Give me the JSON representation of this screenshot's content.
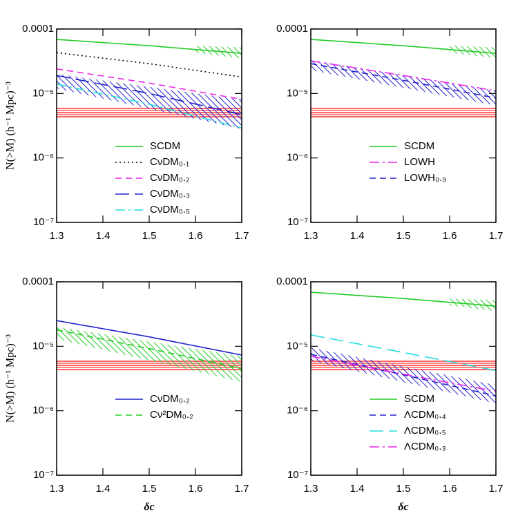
{
  "chart_data": [
    {
      "type": "line",
      "ylabel": "N(>M) (h⁻¹ Mpc)⁻³",
      "log_y": true,
      "legend": "lower center",
      "xlim": [
        1.3,
        1.7
      ],
      "xticks": [
        1.3,
        1.4,
        1.5,
        1.6,
        1.7
      ],
      "ylim": [
        1e-07,
        0.0001
      ],
      "yticks": [
        {
          "value": 1e-07,
          "label": "10⁻⁷"
        },
        {
          "value": 1e-06,
          "label": "10⁻⁶"
        },
        {
          "value": 1e-05,
          "label": "10⁻⁵"
        },
        {
          "value": 0.0001,
          "label": "0.0001"
        }
      ],
      "x": [
        1.3,
        1.5,
        1.7
      ],
      "series": [
        {
          "name": "SCDM",
          "color": "#22cc22",
          "linestyle": "solid",
          "values": [
            6.9e-05,
            5.5e-05,
            4.2e-05
          ]
        },
        {
          "name": "CνDM₀.₁",
          "color": "#000000",
          "linestyle": "dotted",
          "values": [
            4.3e-05,
            2.9e-05,
            1.8e-05
          ]
        },
        {
          "name": "CνDM₀.₂",
          "color": "#ee22ee",
          "linestyle": "dashed",
          "values": [
            2.4e-05,
            1.45e-05,
            8.1e-06
          ]
        },
        {
          "name": "CνDM₀.₃",
          "color": "#2222cc",
          "linestyle": "longdash",
          "values": [
            1.9e-05,
            1e-05,
            4.7e-06
          ]
        },
        {
          "name": "CνDM₀.₅",
          "color": "#22dddd",
          "linestyle": "dashdot",
          "values": [
            1.4e-05,
            6.8e-06,
            2.9e-06
          ]
        }
      ],
      "bands": [
        {
          "color": "#ff6666",
          "hatch": "horizontal",
          "x": [
            1.3,
            1.7
          ],
          "lower": [
            4.2e-06,
            4.2e-06
          ],
          "upper": [
            6e-06,
            6e-06
          ]
        },
        {
          "color": "#2222cc",
          "hatch": "diagonal",
          "x": [
            1.3,
            1.7
          ],
          "lower": [
            1.2e-05,
            2.8e-06
          ],
          "upper": [
            2e-05,
            8e-06
          ]
        },
        {
          "color": "#22cc22",
          "hatch": "diagonal",
          "x": [
            1.6,
            1.7
          ],
          "lower": [
            4.3e-05,
            3.5e-05
          ],
          "upper": [
            5.5e-05,
            5.2e-05
          ]
        }
      ]
    },
    {
      "type": "line",
      "log_y": true,
      "legend": "lower center",
      "xlim": [
        1.3,
        1.7
      ],
      "xticks": [
        1.3,
        1.4,
        1.5,
        1.6,
        1.7
      ],
      "ylim": [
        1e-07,
        0.0001
      ],
      "yticks": [
        {
          "value": 1e-07,
          "label": "10⁻⁷"
        },
        {
          "value": 1e-06,
          "label": "10⁻⁶"
        },
        {
          "value": 1e-05,
          "label": "10⁻⁵"
        },
        {
          "value": 0.0001,
          "label": "0.0001"
        }
      ],
      "x": [
        1.3,
        1.5,
        1.7
      ],
      "series": [
        {
          "name": "SCDM",
          "color": "#22cc22",
          "linestyle": "solid",
          "values": [
            6.9e-05,
            5.5e-05,
            4.2e-05
          ]
        },
        {
          "name": "LOWH",
          "color": "#ee22ee",
          "linestyle": "dashdot",
          "values": [
            3.2e-05,
            1.9e-05,
            1.1e-05
          ]
        },
        {
          "name": "LOWH₀.₉",
          "color": "#2222cc",
          "linestyle": "dashed",
          "values": [
            2.9e-05,
            1.6e-05,
            8.5e-06
          ]
        }
      ],
      "bands": [
        {
          "color": "#ff6666",
          "hatch": "horizontal",
          "x": [
            1.3,
            1.7
          ],
          "lower": [
            4.2e-06,
            4.2e-06
          ],
          "upper": [
            6e-06,
            6e-06
          ]
        },
        {
          "color": "#2222cc",
          "hatch": "diagonal",
          "x": [
            1.3,
            1.7
          ],
          "lower": [
            2.3e-05,
            6.5e-06
          ],
          "upper": [
            3.3e-05,
            1.1e-05
          ]
        },
        {
          "color": "#22cc22",
          "hatch": "diagonal",
          "x": [
            1.6,
            1.7
          ],
          "lower": [
            4.3e-05,
            3.5e-05
          ],
          "upper": [
            5.5e-05,
            5.2e-05
          ]
        }
      ]
    },
    {
      "type": "line",
      "ylabel": "N(>M) (h⁻¹ Mpc)⁻³",
      "xlabel": "δc",
      "log_y": true,
      "legend": "lower center",
      "xlim": [
        1.3,
        1.7
      ],
      "xticks": [
        1.3,
        1.4,
        1.5,
        1.6,
        1.7
      ],
      "ylim": [
        1e-07,
        0.0001
      ],
      "yticks": [
        {
          "value": 1e-07,
          "label": "10⁻⁷"
        },
        {
          "value": 1e-06,
          "label": "10⁻⁶"
        },
        {
          "value": 1e-05,
          "label": "10⁻⁵"
        },
        {
          "value": 0.0001,
          "label": "0.0001"
        }
      ],
      "x": [
        1.3,
        1.5,
        1.7
      ],
      "series": [
        {
          "name": "CνDM₀.₂",
          "color": "#2222cc",
          "linestyle": "solid",
          "values": [
            2.5e-05,
            1.4e-05,
            7.3e-06
          ]
        },
        {
          "name": "Cν²DM₀.₂",
          "color": "#22cc22",
          "linestyle": "dashed",
          "values": [
            1.8e-05,
            9.2e-06,
            4.5e-06
          ]
        }
      ],
      "bands": [
        {
          "color": "#ff6666",
          "hatch": "horizontal",
          "x": [
            1.3,
            1.7
          ],
          "lower": [
            4.2e-06,
            4.2e-06
          ],
          "upper": [
            6e-06,
            6e-06
          ]
        },
        {
          "color": "#22cc22",
          "hatch": "diagonal",
          "x": [
            1.3,
            1.7
          ],
          "lower": [
            1.3e-05,
            2.8e-06
          ],
          "upper": [
            2e-05,
            7e-06
          ]
        }
      ]
    },
    {
      "type": "line",
      "xlabel": "δc",
      "log_y": true,
      "legend": "lower center",
      "xlim": [
        1.3,
        1.7
      ],
      "xticks": [
        1.3,
        1.4,
        1.5,
        1.6,
        1.7
      ],
      "ylim": [
        1e-07,
        0.0001
      ],
      "yticks": [
        {
          "value": 1e-07,
          "label": "10⁻⁷"
        },
        {
          "value": 1e-06,
          "label": "10⁻⁶"
        },
        {
          "value": 1e-05,
          "label": "10⁻⁵"
        },
        {
          "value": 0.0001,
          "label": "0.0001"
        }
      ],
      "x": [
        1.3,
        1.5,
        1.7
      ],
      "series": [
        {
          "name": "SCDM",
          "color": "#22cc22",
          "linestyle": "solid",
          "values": [
            6.9e-05,
            5.5e-05,
            4.2e-05
          ]
        },
        {
          "name": "ΛCDM₀.₄",
          "color": "#2222cc",
          "linestyle": "dashed",
          "values": [
            7.5e-06,
            3.6e-06,
            1.7e-06
          ]
        },
        {
          "name": "ΛCDM₀.₅",
          "color": "#22dddd",
          "linestyle": "longdash",
          "values": [
            1.5e-05,
            8e-06,
            4.2e-06
          ]
        },
        {
          "name": "ΛCDM₀.₃",
          "color": "#ee22ee",
          "linestyle": "dashdot",
          "values": [
            7e-06,
            3.7e-06,
            2e-06
          ]
        }
      ],
      "bands": [
        {
          "color": "#ff6666",
          "hatch": "horizontal",
          "x": [
            1.3,
            1.7
          ],
          "lower": [
            4.2e-06,
            4.2e-06
          ],
          "upper": [
            6e-06,
            6e-06
          ]
        },
        {
          "color": "#2222cc",
          "hatch": "diagonal",
          "x": [
            1.3,
            1.7
          ],
          "lower": [
            6e-06,
            1.3e-06
          ],
          "upper": [
            9.5e-06,
            2.5e-06
          ]
        },
        {
          "color": "#22cc22",
          "hatch": "diagonal",
          "x": [
            1.6,
            1.7
          ],
          "lower": [
            4.3e-05,
            3.5e-05
          ],
          "upper": [
            5.5e-05,
            5.2e-05
          ]
        }
      ]
    }
  ]
}
